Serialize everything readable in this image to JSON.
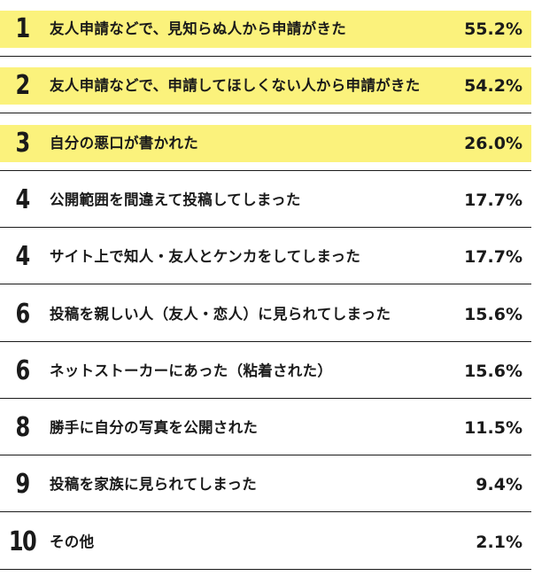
{
  "chart_data": {
    "type": "table",
    "highlight_color": "#fbf27c",
    "rows": [
      {
        "rank": "1",
        "label": "友人申請などで、見知らぬ人から申請がきた",
        "value": 55.2,
        "value_text": "55.2%",
        "highlight": true
      },
      {
        "rank": "2",
        "label": "友人申請などで、申請してほしくない人から申請がきた",
        "value": 54.2,
        "value_text": "54.2%",
        "highlight": true
      },
      {
        "rank": "3",
        "label": "自分の悪口が書かれた",
        "value": 26.0,
        "value_text": "26.0%",
        "highlight": true
      },
      {
        "rank": "4",
        "label": "公開範囲を間違えて投稿してしまった",
        "value": 17.7,
        "value_text": "17.7%",
        "highlight": false
      },
      {
        "rank": "4",
        "label": "サイト上で知人・友人とケンカをしてしまった",
        "value": 17.7,
        "value_text": "17.7%",
        "highlight": false
      },
      {
        "rank": "6",
        "label": "投稿を親しい人（友人・恋人）に見られてしまった",
        "value": 15.6,
        "value_text": "15.6%",
        "highlight": false
      },
      {
        "rank": "6",
        "label": "ネットストーカーにあった（粘着された）",
        "value": 15.6,
        "value_text": "15.6%",
        "highlight": false
      },
      {
        "rank": "8",
        "label": "勝手に自分の写真を公開された",
        "value": 11.5,
        "value_text": "11.5%",
        "highlight": false
      },
      {
        "rank": "9",
        "label": "投稿を家族に見られてしまった",
        "value": 9.4,
        "value_text": "9.4%",
        "highlight": false
      },
      {
        "rank": "10",
        "label": "その他",
        "value": 2.1,
        "value_text": "2.1%",
        "highlight": false
      }
    ]
  }
}
